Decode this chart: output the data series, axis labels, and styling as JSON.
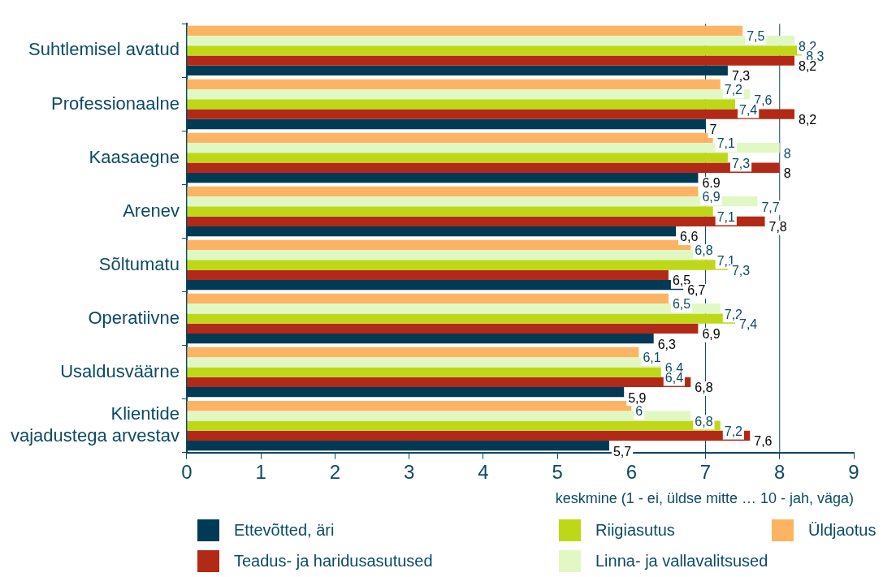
{
  "chart_data": {
    "type": "bar",
    "orientation": "horizontal",
    "xlabel": "keskmine (1 - ei, üldse mitte … 10 - jah, väga)",
    "categories": [
      "Suhtlemisel avatud",
      "Professionaalne",
      "Kaasaegne",
      "Arenev",
      "Sõltumatu",
      "Operatiivne",
      "Usaldusväärne",
      "Klientide vajadustega arvestav"
    ],
    "series": [
      {
        "name": "Üldjaotus",
        "color": "#fdb462",
        "values": [
          7.5,
          7.2,
          7.1,
          6.9,
          6.8,
          6.5,
          6.1,
          6
        ],
        "value_labels": [
          "7,5",
          "7,2",
          "7,1",
          "6,9",
          "6,8",
          "6,5",
          "6,1",
          "6"
        ]
      },
      {
        "name": "Linna- ja vallavalitsused",
        "color": "#e2f8c4",
        "values": [
          8.2,
          7.6,
          8,
          7.7,
          7.1,
          7.2,
          6.4,
          6.8
        ],
        "value_labels": [
          "8,2",
          "7,6",
          "8",
          "7,7",
          "7,1",
          "7,2",
          "6,4",
          "6,8"
        ]
      },
      {
        "name": "Riigiasutus",
        "color": "#bed818",
        "values": [
          8.3,
          7.4,
          7.3,
          7.1,
          7.3,
          7.4,
          6.4,
          7.2
        ],
        "value_labels": [
          "8,3",
          "7,4",
          "7,3",
          "7,1",
          "7,3",
          "7,4",
          "6,4",
          "7,2"
        ]
      },
      {
        "name": "Teadus- ja haridusasutused",
        "color": "#b22a17",
        "values": [
          8.2,
          8.2,
          8,
          7.8,
          6.5,
          6.9,
          6.8,
          7.6
        ],
        "value_labels": [
          "8,2",
          "8,2",
          "8",
          "7,8",
          "6,5",
          "6,9",
          "6,8",
          "7,6"
        ]
      },
      {
        "name": "Ettevõtted, äri",
        "color": "#003a54",
        "values": [
          7.3,
          7,
          6.9,
          6.6,
          6.7,
          6.3,
          5.9,
          5.7
        ],
        "value_labels": [
          "7,3",
          "7",
          "6.9",
          "6,6",
          "6,7",
          "6,3",
          "5,9",
          "5,7"
        ]
      }
    ],
    "xlim": [
      0,
      9
    ],
    "xticks": [
      0,
      1,
      2,
      3,
      4,
      5,
      6,
      7,
      8,
      9
    ],
    "ref_lines": [
      {
        "axis": "x",
        "value": 7,
        "color": "#0d4a63"
      },
      {
        "axis": "x",
        "value": 8,
        "color": "#0d4a63"
      }
    ],
    "grid": false,
    "legend": "bottom"
  }
}
